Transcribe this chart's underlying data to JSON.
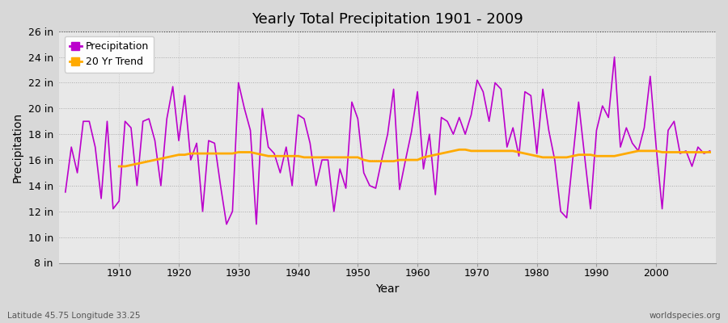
{
  "title": "Yearly Total Precipitation 1901 - 2009",
  "ylabel": "Precipitation",
  "xlabel": "Year",
  "lat_lon_label": "Latitude 45.75 Longitude 33.25",
  "source_label": "worldspecies.org",
  "fig_bg_color": "#d8d8d8",
  "plot_bg_color": "#e8e8e8",
  "precip_color": "#bb00cc",
  "trend_color": "#ffaa00",
  "ylim": [
    8,
    26
  ],
  "xlim": [
    1900,
    2010
  ],
  "ytick_values": [
    8,
    10,
    12,
    14,
    16,
    18,
    20,
    22,
    24,
    26
  ],
  "ytick_labels": [
    "8 in",
    "10 in",
    "12 in",
    "14 in",
    "16 in",
    "18 in",
    "20 in",
    "22 in",
    "24 in",
    "26 in"
  ],
  "xtick_values": [
    1910,
    1920,
    1930,
    1940,
    1950,
    1960,
    1970,
    1980,
    1990,
    2000
  ],
  "years": [
    1901,
    1902,
    1903,
    1904,
    1905,
    1906,
    1907,
    1908,
    1909,
    1910,
    1911,
    1912,
    1913,
    1914,
    1915,
    1916,
    1917,
    1918,
    1919,
    1920,
    1921,
    1922,
    1923,
    1924,
    1925,
    1926,
    1927,
    1928,
    1929,
    1930,
    1931,
    1932,
    1933,
    1934,
    1935,
    1936,
    1937,
    1938,
    1939,
    1940,
    1941,
    1942,
    1943,
    1944,
    1945,
    1946,
    1947,
    1948,
    1949,
    1950,
    1951,
    1952,
    1953,
    1954,
    1955,
    1956,
    1957,
    1958,
    1959,
    1960,
    1961,
    1962,
    1963,
    1964,
    1965,
    1966,
    1967,
    1968,
    1969,
    1970,
    1971,
    1972,
    1973,
    1974,
    1975,
    1976,
    1977,
    1978,
    1979,
    1980,
    1981,
    1982,
    1983,
    1984,
    1985,
    1986,
    1987,
    1988,
    1989,
    1990,
    1991,
    1992,
    1993,
    1994,
    1995,
    1996,
    1997,
    1998,
    1999,
    2000,
    2001,
    2002,
    2003,
    2004,
    2005,
    2006,
    2007,
    2008,
    2009
  ],
  "precip": [
    13.5,
    17.0,
    15.0,
    19.0,
    19.0,
    17.0,
    13.0,
    19.0,
    12.2,
    12.8,
    19.0,
    18.5,
    14.0,
    19.0,
    19.2,
    17.5,
    14.0,
    19.2,
    21.7,
    17.5,
    21.0,
    16.0,
    17.3,
    12.0,
    17.5,
    17.3,
    14.0,
    11.0,
    12.0,
    22.0,
    20.0,
    18.3,
    11.0,
    20.0,
    17.0,
    16.5,
    15.0,
    17.0,
    14.0,
    19.5,
    19.2,
    17.3,
    14.0,
    16.0,
    16.0,
    12.0,
    15.3,
    13.8,
    20.5,
    19.2,
    15.0,
    14.0,
    13.8,
    16.0,
    18.0,
    21.5,
    13.7,
    16.0,
    18.2,
    21.3,
    15.3,
    18.0,
    13.3,
    19.3,
    19.0,
    18.0,
    19.3,
    18.0,
    19.5,
    22.2,
    21.3,
    19.0,
    22.0,
    21.5,
    17.0,
    18.5,
    16.3,
    21.3,
    21.0,
    16.5,
    21.5,
    18.3,
    16.0,
    12.0,
    11.5,
    16.0,
    20.5,
    16.3,
    12.2,
    18.3,
    20.2,
    19.3,
    24.0,
    17.0,
    18.5,
    17.3,
    16.7,
    18.5,
    22.5,
    17.0,
    12.2,
    18.3,
    19.0,
    16.5,
    16.7,
    15.5,
    17.0,
    16.5,
    16.7
  ],
  "trend_start_year": 1910,
  "trend": [
    15.5,
    15.5,
    15.6,
    15.7,
    15.8,
    15.9,
    16.0,
    16.1,
    16.2,
    16.3,
    16.4,
    16.4,
    16.5,
    16.5,
    16.5,
    16.5,
    16.5,
    16.5,
    16.5,
    16.5,
    16.6,
    16.6,
    16.6,
    16.5,
    16.4,
    16.3,
    16.3,
    16.3,
    16.3,
    16.3,
    16.3,
    16.2,
    16.2,
    16.2,
    16.2,
    16.2,
    16.2,
    16.2,
    16.2,
    16.2,
    16.2,
    16.0,
    15.9,
    15.9,
    15.9,
    15.9,
    15.9,
    16.0,
    16.0,
    16.0,
    16.0,
    16.2,
    16.3,
    16.4,
    16.5,
    16.6,
    16.7,
    16.8,
    16.8,
    16.7,
    16.7,
    16.7,
    16.7,
    16.7,
    16.7,
    16.7,
    16.7,
    16.6,
    16.5,
    16.4,
    16.3,
    16.2,
    16.2,
    16.2,
    16.2,
    16.2,
    16.3,
    16.4,
    16.4,
    16.4,
    16.3,
    16.3,
    16.3,
    16.3,
    16.4,
    16.5,
    16.6,
    16.7,
    16.7,
    16.7,
    16.7,
    16.6,
    16.6,
    16.6,
    16.6,
    16.6,
    16.6,
    16.6,
    16.6,
    16.6
  ]
}
